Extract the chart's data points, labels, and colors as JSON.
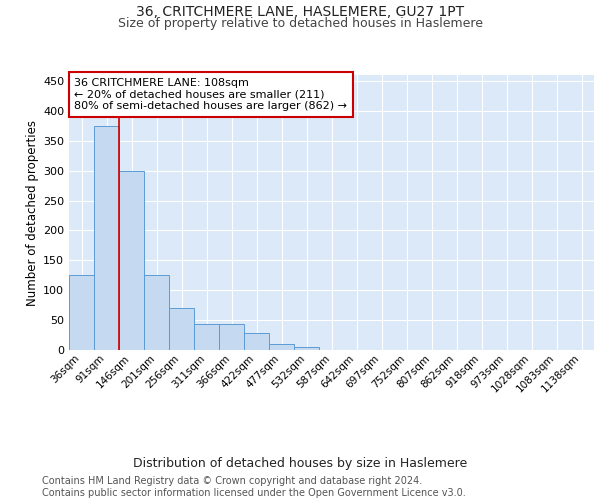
{
  "title1": "36, CRITCHMERE LANE, HASLEMERE, GU27 1PT",
  "title2": "Size of property relative to detached houses in Haslemere",
  "xlabel": "Distribution of detached houses by size in Haslemere",
  "ylabel": "Number of detached properties",
  "footer1": "Contains HM Land Registry data © Crown copyright and database right 2024.",
  "footer2": "Contains public sector information licensed under the Open Government Licence v3.0.",
  "bin_labels": [
    "36sqm",
    "91sqm",
    "146sqm",
    "201sqm",
    "256sqm",
    "311sqm",
    "366sqm",
    "422sqm",
    "477sqm",
    "532sqm",
    "587sqm",
    "642sqm",
    "697sqm",
    "752sqm",
    "807sqm",
    "862sqm",
    "918sqm",
    "973sqm",
    "1028sqm",
    "1083sqm",
    "1138sqm"
  ],
  "bar_heights": [
    125,
    375,
    300,
    125,
    70,
    43,
    43,
    28,
    10,
    5,
    0,
    0,
    0,
    0,
    0,
    0,
    0,
    0,
    0,
    0,
    0
  ],
  "bar_color": "#c5d9f0",
  "bar_edge_color": "#5b9bd5",
  "red_line_x": 1.5,
  "annotation_text": "36 CRITCHMERE LANE: 108sqm\n← 20% of detached houses are smaller (211)\n80% of semi-detached houses are larger (862) →",
  "annotation_box_color": "#ffffff",
  "annotation_box_edge_color": "#cc0000",
  "ylim": [
    0,
    460
  ],
  "yticks": [
    0,
    50,
    100,
    150,
    200,
    250,
    300,
    350,
    400,
    450
  ],
  "plot_bg_color": "#dce9f8",
  "grid_color": "#ffffff",
  "title1_fontsize": 10,
  "title2_fontsize": 9,
  "xlabel_fontsize": 9,
  "ylabel_fontsize": 8.5,
  "ann_fontsize": 8,
  "footer_fontsize": 7
}
